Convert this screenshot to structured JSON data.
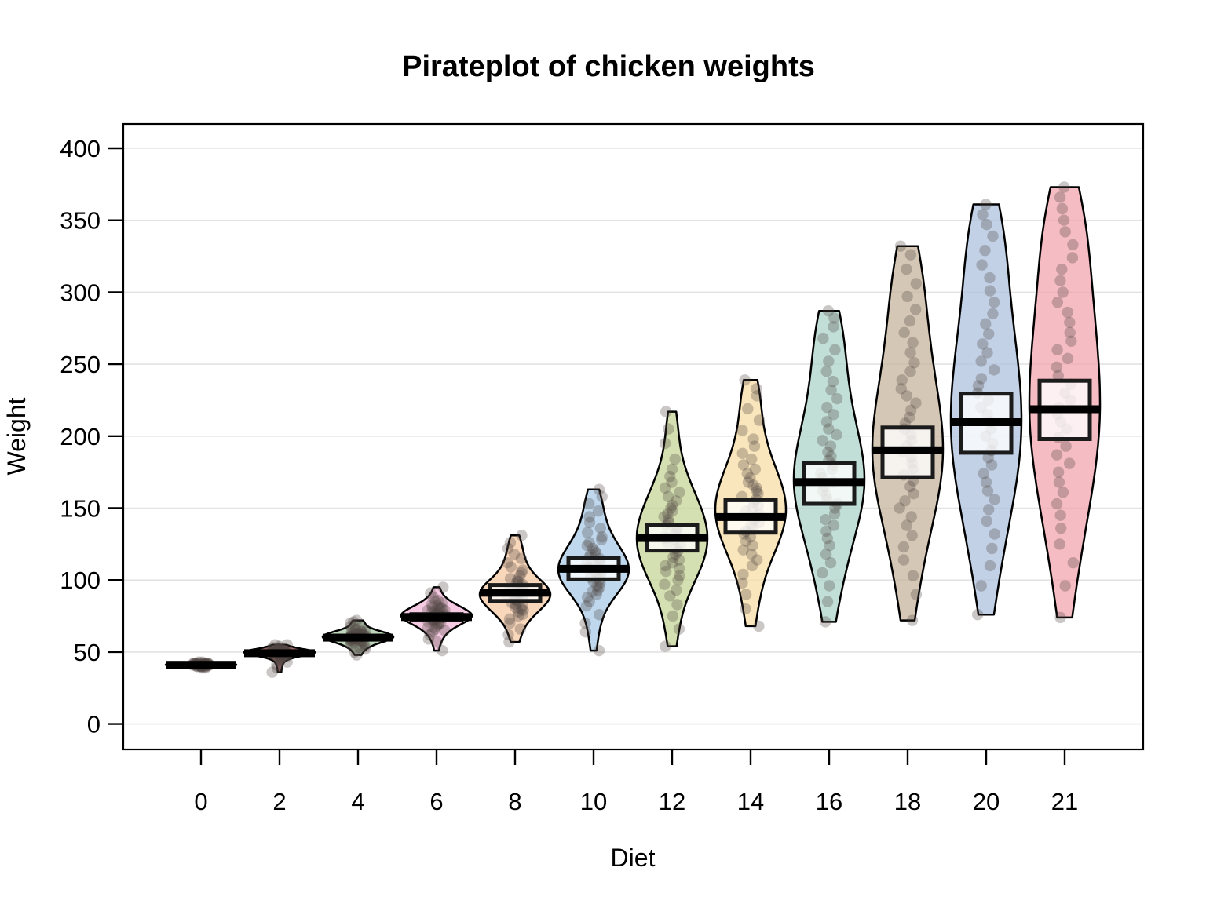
{
  "chart_data": {
    "type": "pirateplot (violin + jittered points + mean line + inference band)",
    "title": "Pirateplot of chicken weights",
    "xlabel": "Diet",
    "ylabel": "Weight",
    "x_ticks": [
      "0",
      "2",
      "4",
      "6",
      "8",
      "10",
      "12",
      "14",
      "16",
      "18",
      "20",
      "21"
    ],
    "y_ticks": [
      0,
      50,
      100,
      150,
      200,
      250,
      300,
      350,
      400
    ],
    "ylim": [
      -18,
      417
    ],
    "grid": "horizontal light gray lines at every y tick, framed plot box",
    "legend": "none",
    "groups": [
      {
        "x": "0",
        "mean": 41.1,
        "band": [
          40.5,
          41.7
        ],
        "color": "#2e2a2a",
        "points": [
          39,
          39,
          40,
          40,
          40,
          40,
          40,
          41,
          41,
          41,
          41,
          41,
          41,
          41,
          41,
          41,
          41,
          41,
          41,
          41,
          42,
          42,
          42,
          42,
          42,
          42,
          42,
          42,
          42,
          42,
          43,
          43,
          41,
          40,
          41,
          42,
          41,
          41,
          40,
          42,
          41,
          41,
          42,
          40,
          41,
          41
        ]
      },
      {
        "x": "2",
        "mean": 49.2,
        "band": [
          48.4,
          50.1
        ],
        "color": "#7e3838",
        "points": [
          36,
          39,
          41,
          43,
          44,
          45,
          46,
          46,
          47,
          47,
          47,
          48,
          48,
          48,
          48,
          48,
          49,
          49,
          49,
          49,
          49,
          49,
          49,
          50,
          50,
          50,
          50,
          50,
          50,
          50,
          50,
          51,
          51,
          51,
          51,
          51,
          51,
          52,
          52,
          52,
          52,
          53,
          53,
          54,
          55,
          55
        ]
      },
      {
        "x": "4",
        "mean": 60.0,
        "band": [
          58.7,
          61.3
        ],
        "color": "#a8c8a5",
        "points": [
          48,
          50,
          52,
          53,
          54,
          55,
          55,
          56,
          56,
          57,
          57,
          58,
          58,
          58,
          59,
          59,
          59,
          59,
          60,
          60,
          60,
          60,
          60,
          61,
          61,
          61,
          61,
          62,
          62,
          62,
          62,
          63,
          63,
          63,
          64,
          64,
          64,
          65,
          65,
          66,
          67,
          68,
          70,
          71,
          72
        ]
      },
      {
        "x": "6",
        "mean": 74.3,
        "band": [
          72.3,
          76.3
        ],
        "color": "#f3b8da",
        "points": [
          51,
          57,
          59,
          62,
          64,
          65,
          66,
          67,
          68,
          69,
          70,
          70,
          71,
          71,
          72,
          72,
          73,
          73,
          74,
          74,
          74,
          75,
          75,
          75,
          76,
          76,
          76,
          77,
          77,
          78,
          78,
          79,
          79,
          80,
          80,
          81,
          81,
          82,
          83,
          84,
          85,
          86,
          88,
          91,
          95
        ]
      },
      {
        "x": "8",
        "mean": 91.2,
        "band": [
          85.5,
          96.5
        ],
        "color": "#f7c9a4",
        "points": [
          57,
          62,
          66,
          70,
          73,
          75,
          76,
          78,
          79,
          80,
          81,
          82,
          83,
          84,
          85,
          86,
          87,
          88,
          88,
          89,
          90,
          90,
          91,
          91,
          92,
          93,
          93,
          94,
          95,
          96,
          97,
          98,
          99,
          100,
          101,
          103,
          105,
          107,
          109,
          112,
          115,
          118,
          122,
          126,
          131
        ]
      },
      {
        "x": "10",
        "mean": 107.8,
        "band": [
          100.5,
          115.5
        ],
        "color": "#a9cbe8",
        "points": [
          51,
          64,
          70,
          76,
          82,
          85,
          88,
          90,
          92,
          93,
          95,
          96,
          98,
          99,
          100,
          102,
          103,
          104,
          105,
          106,
          107,
          108,
          109,
          110,
          111,
          112,
          113,
          115,
          116,
          118,
          119,
          120,
          122,
          124,
          126,
          128,
          130,
          133,
          136,
          140,
          144,
          148,
          153,
          158,
          163
        ]
      },
      {
        "x": "12",
        "mean": 129.2,
        "band": [
          120.5,
          138.0
        ],
        "color": "#c5d697",
        "points": [
          54,
          66,
          75,
          83,
          89,
          93,
          97,
          100,
          103,
          106,
          108,
          110,
          112,
          114,
          116,
          118,
          120,
          122,
          124,
          126,
          128,
          129,
          130,
          132,
          134,
          136,
          138,
          140,
          142,
          144,
          146,
          148,
          150,
          152,
          155,
          158,
          161,
          164,
          168,
          172,
          177,
          184,
          195,
          205,
          217
        ]
      },
      {
        "x": "14",
        "mean": 143.8,
        "band": [
          133.0,
          155.5
        ],
        "color": "#f8dda6",
        "points": [
          68,
          80,
          90,
          98,
          104,
          110,
          114,
          118,
          121,
          124,
          127,
          130,
          132,
          134,
          136,
          138,
          140,
          142,
          144,
          146,
          148,
          150,
          152,
          154,
          156,
          158,
          160,
          162,
          164,
          166,
          168,
          171,
          174,
          177,
          180,
          184,
          188,
          193,
          198,
          204,
          211,
          219,
          228,
          233,
          239
        ]
      },
      {
        "x": "16",
        "mean": 168.1,
        "band": [
          153.0,
          181.5
        ],
        "color": "#aed4c9",
        "points": [
          71,
          85,
          96,
          105,
          112,
          118,
          124,
          129,
          134,
          138,
          142,
          146,
          150,
          153,
          156,
          159,
          162,
          165,
          168,
          171,
          174,
          177,
          180,
          183,
          186,
          189,
          193,
          197,
          201,
          205,
          210,
          215,
          220,
          226,
          232,
          238,
          245,
          252,
          260,
          268,
          276,
          282,
          287
        ]
      },
      {
        "x": "18",
        "mean": 190.2,
        "band": [
          171.5,
          206.0
        ],
        "color": "#c7b49c",
        "points": [
          72,
          90,
          103,
          114,
          123,
          131,
          138,
          144,
          150,
          155,
          160,
          165,
          169,
          173,
          177,
          181,
          185,
          189,
          193,
          197,
          201,
          205,
          209,
          213,
          218,
          223,
          228,
          233,
          239,
          245,
          251,
          258,
          265,
          272,
          280,
          288,
          297,
          306,
          316,
          326,
          332
        ]
      },
      {
        "x": "20",
        "mean": 209.7,
        "band": [
          188.5,
          229.5
        ],
        "color": "#aec2de",
        "points": [
          76,
          96,
          110,
          122,
          132,
          141,
          149,
          156,
          162,
          168,
          174,
          180,
          185,
          190,
          195,
          200,
          205,
          210,
          215,
          220,
          225,
          230,
          235,
          240,
          246,
          252,
          258,
          264,
          271,
          278,
          285,
          293,
          301,
          310,
          319,
          329,
          339,
          347,
          354,
          361
        ]
      },
      {
        "x": "21",
        "mean": 218.7,
        "band": [
          198.0,
          238.5
        ],
        "color": "#f2a6af",
        "points": [
          74,
          96,
          112,
          125,
          136,
          145,
          153,
          161,
          168,
          175,
          181,
          187,
          193,
          199,
          205,
          210,
          215,
          220,
          225,
          230,
          236,
          242,
          248,
          254,
          260,
          266,
          272,
          279,
          286,
          293,
          300,
          308,
          316,
          324,
          333,
          342,
          350,
          358,
          366,
          373
        ]
      }
    ]
  },
  "style": {
    "grid_color": "#e3e3e3",
    "box_color": "#000000",
    "violin_outline": "#000000",
    "point_color": "rgba(80,68,66,0.30)",
    "band_fill": "rgba(255,255,255,0.78)",
    "band_border": "#1b1b1b",
    "mean_line_color": "#000000",
    "background": "#ffffff"
  }
}
